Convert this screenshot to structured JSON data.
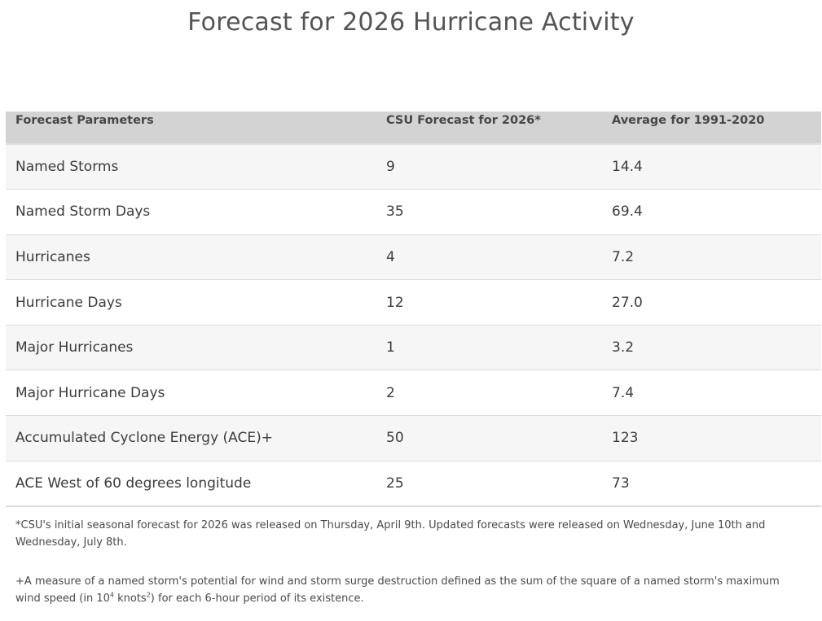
{
  "page": {
    "title": "Forecast for 2026 Hurricane Activity"
  },
  "table": {
    "headers": [
      "Forecast Parameters",
      "CSU Forecast for 2026*",
      "Average for 1991-2020"
    ],
    "rows": [
      [
        "Named Storms",
        "9",
        "14.4"
      ],
      [
        "Named Storm Days",
        "35",
        "69.4"
      ],
      [
        "Hurricanes",
        "4",
        "7.2"
      ],
      [
        "Hurricane Days",
        "12",
        "27.0"
      ],
      [
        "Major Hurricanes",
        "1",
        "3.2"
      ],
      [
        "Major Hurricane Days",
        "2",
        "7.4"
      ],
      [
        "Accumulated Cyclone Energy (ACE)+",
        "50",
        "123"
      ],
      [
        "ACE West of 60 degrees longitude",
        "25",
        "73"
      ]
    ]
  },
  "footnotes": {
    "release_note": "*CSU's initial seasonal forecast for 2026 was released on Thursday, April 9th. Updated forecasts were released on Wednesday, June 10th and Wednesday, July 8th.",
    "ace_definition_part1": "+A measure of a named storm's potential for wind and storm surge destruction defined as the sum of the square of a named storm's maximum wind speed (in 10",
    "ace_definition_exp1": "4",
    "ace_definition_part2": " knots",
    "ace_definition_exp2": "2",
    "ace_definition_part3": ") for each 6-hour period of its existence."
  }
}
